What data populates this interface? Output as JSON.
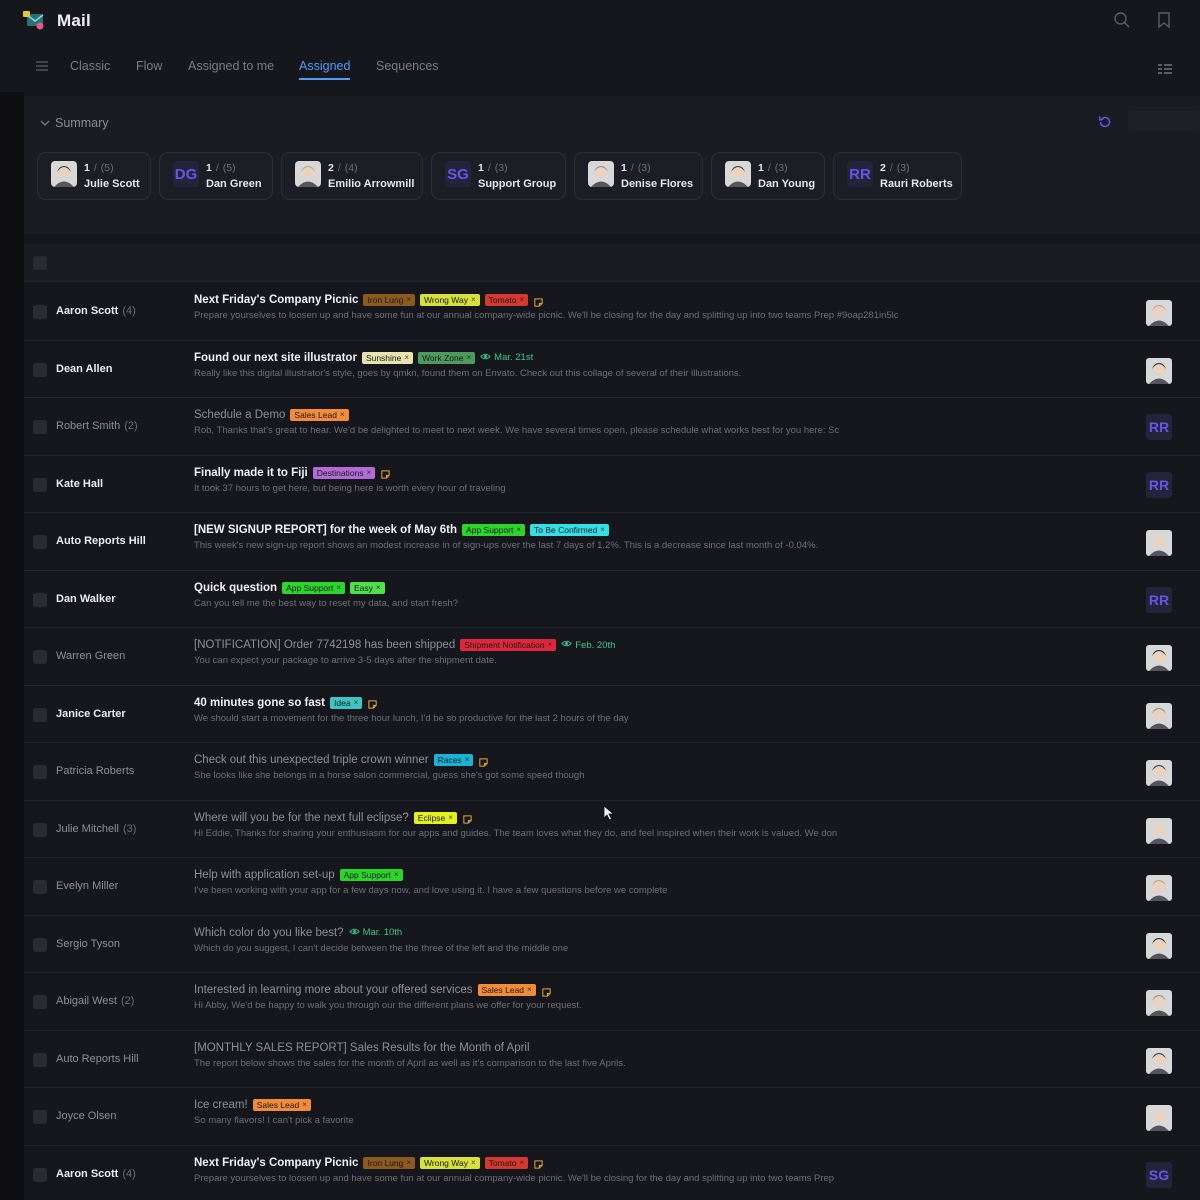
{
  "app": {
    "title": "Mail"
  },
  "tabs": [
    {
      "label": "Classic"
    },
    {
      "label": "Flow"
    },
    {
      "label": "Assigned to me"
    },
    {
      "label": "Assigned",
      "active": true
    },
    {
      "label": "Sequences"
    }
  ],
  "summary": {
    "title": "Summary",
    "agents": [
      {
        "done": "1",
        "total": "(5)",
        "name": "Julie Scott",
        "avatar": "photo"
      },
      {
        "done": "1",
        "total": "(5)",
        "name": "Dan Green",
        "initials": "DG"
      },
      {
        "done": "2",
        "total": "(4)",
        "name": "Emilio Arrowmill",
        "avatar": "photo"
      },
      {
        "done": "1",
        "total": "(3)",
        "name": "Support Group",
        "initials": "SG"
      },
      {
        "done": "1",
        "total": "(3)",
        "name": "Denise Flores",
        "avatar": "photo"
      },
      {
        "done": "1",
        "total": "(3)",
        "name": "Dan Young",
        "avatar": "photo"
      },
      {
        "done": "2",
        "total": "(3)",
        "name": "Rauri Roberts",
        "initials": "RR"
      }
    ]
  },
  "emails": [
    {
      "sender": "Aaron Scott",
      "count": "(4)",
      "unread": true,
      "subject": "Next Friday's Company Picnic",
      "tags": [
        {
          "label": "Iron Lung",
          "color": "#8a5a1f"
        },
        {
          "label": "Wrong Way",
          "color": "#d8e03a"
        },
        {
          "label": "Tomato",
          "color": "#d6382f"
        }
      ],
      "note": true,
      "preview": "Prepare yourselves to loosen up and have some fun at our annual company-wide picnic. We'll be closing for the day and splitting up into two teams Prep #9oap281in5lc",
      "assignee": "photo"
    },
    {
      "sender": "Dean Allen",
      "count": "",
      "unread": true,
      "subject": "Found our next site illustrator",
      "tags": [
        {
          "label": "Sunshine",
          "color": "#e6e3b0"
        },
        {
          "label": "Work Zone",
          "color": "#4c9a5e"
        }
      ],
      "date": "Mar. 21st",
      "preview": "Really like this digital illustrator's style, goes by qmkn, found them on Envato. Check out this collage of several of their illustrations.",
      "assignee": "photo"
    },
    {
      "sender": "Robert Smith",
      "count": "(2)",
      "unread": false,
      "subject": "Schedule a Demo",
      "tags": [
        {
          "label": "Sales Lead",
          "color": "#f28c38"
        }
      ],
      "preview": "Rob, Thanks that's great to hear. We'd be delighted to meet to next week. We have several times open, please schedule what works best for you here: Sc",
      "assignee": "RR"
    },
    {
      "sender": "Kate Hall",
      "count": "",
      "unread": true,
      "subject": "Finally made it to Fiji",
      "tags": [
        {
          "label": "Destinations",
          "color": "#b36bd9"
        }
      ],
      "note": true,
      "preview": "It took 37 hours to get here, but being here is worth every hour of traveling",
      "assignee": "RR"
    },
    {
      "sender": "Auto Reports Hill",
      "count": "",
      "unread": true,
      "subject": "[NEW SIGNUP REPORT] for the week of May 6th",
      "tags": [
        {
          "label": "App Support",
          "color": "#2bd52b"
        },
        {
          "label": "To Be Confirmed",
          "color": "#33e0e6"
        }
      ],
      "preview": "This week's new sign-up report shows an modest increase in of sign-ups over the last 7 days of 1.2%. This is a decrease since last month of -0.04%.",
      "assignee": "photo"
    },
    {
      "sender": "Dan Walker",
      "count": "",
      "unread": true,
      "subject": "Quick question",
      "tags": [
        {
          "label": "App Support",
          "color": "#2bd52b"
        },
        {
          "label": "Easy",
          "color": "#4fe04a"
        }
      ],
      "preview": "Can you tell me the best way to reset my data, and start fresh?",
      "assignee": "RR"
    },
    {
      "sender": "Warren Green",
      "count": "",
      "unread": false,
      "subject": "[NOTIFICATION] Order 7742198 has been shipped",
      "tags": [
        {
          "label": "Shipment Notification",
          "color": "#e0263a"
        }
      ],
      "date": "Feb. 20th",
      "preview": "You can expect your package to arrive 3-5 days after the shipment date.",
      "assignee": "photo"
    },
    {
      "sender": "Janice Carter",
      "count": "",
      "unread": true,
      "subject": "40 minutes gone so fast",
      "tags": [
        {
          "label": "Idea",
          "color": "#3fc4c4"
        }
      ],
      "note": true,
      "preview": "We should start a movement for the three hour lunch, I'd be so productive for the last 2 hours of the day",
      "assignee": "photo"
    },
    {
      "sender": "Patricia Roberts",
      "count": "",
      "unread": false,
      "subject": "Check out this unexpected triple crown winner",
      "tags": [
        {
          "label": "Races",
          "color": "#19b3d6"
        }
      ],
      "note": true,
      "preview": "She looks like she belongs in a horse salon commercial, guess she's got some speed though",
      "assignee": "photo"
    },
    {
      "sender": "Julie Mitchell",
      "count": "(3)",
      "unread": false,
      "subject": "Where will you be for the next full eclipse?",
      "tags": [
        {
          "label": "Eclipse",
          "color": "#e3f01c"
        }
      ],
      "note": true,
      "preview": "Hi Eddie, Thanks for sharing your enthusiasm for our apps and guides. The team loves what they do, and feel inspired when their work is valued. We don",
      "assignee": "photo"
    },
    {
      "sender": "Evelyn Miller",
      "count": "",
      "unread": false,
      "subject": "Help with application set-up",
      "tags": [
        {
          "label": "App Support",
          "color": "#2bd52b"
        }
      ],
      "preview": "I've been working with your app for a few days now, and love using it. I have a few questions before we complete",
      "assignee": "photo"
    },
    {
      "sender": "Sergio Tyson",
      "count": "",
      "unread": false,
      "subject": "Which color do you like best?",
      "tags": [],
      "date": "Mar. 10th",
      "preview": "Which do you suggest, I can't decide between the the three of the left and the middle one",
      "assignee": "photo"
    },
    {
      "sender": "Abigail West",
      "count": "(2)",
      "unread": false,
      "subject": "Interested in learning more about your offered services",
      "tags": [
        {
          "label": "Sales Lead",
          "color": "#f28c38"
        }
      ],
      "note": true,
      "preview": "Hi Abby, We'd be happy to walk you through our the different plans we offer for your request.",
      "assignee": "photo"
    },
    {
      "sender": "Auto Reports Hill",
      "count": "",
      "unread": false,
      "subject": "[MONTHLY SALES REPORT] Sales Results for the Month of April",
      "tags": [],
      "preview": "The report below shows the sales for the month of April as well as it's comparison to the last five Aprils.",
      "assignee": "photo"
    },
    {
      "sender": "Joyce Olsen",
      "count": "",
      "unread": false,
      "subject": "Ice cream!",
      "tags": [
        {
          "label": "Sales Lead",
          "color": "#f28c38"
        }
      ],
      "preview": "So many flavors! I can't pick a favorite",
      "assignee": "photo"
    },
    {
      "sender": "Aaron Scott",
      "count": "(4)",
      "unread": true,
      "subject": "Next Friday's Company Picnic",
      "tags": [
        {
          "label": "Iron Lung",
          "color": "#8a5a1f"
        },
        {
          "label": "Wrong Way",
          "color": "#d8e03a"
        },
        {
          "label": "Tomato",
          "color": "#d6382f"
        }
      ],
      "note": true,
      "preview": "Prepare yourselves to loosen up and have some fun at our annual company-wide picnic. We'll be closing for the day and splitting up into two teams Prep",
      "assignee": "SG"
    }
  ]
}
